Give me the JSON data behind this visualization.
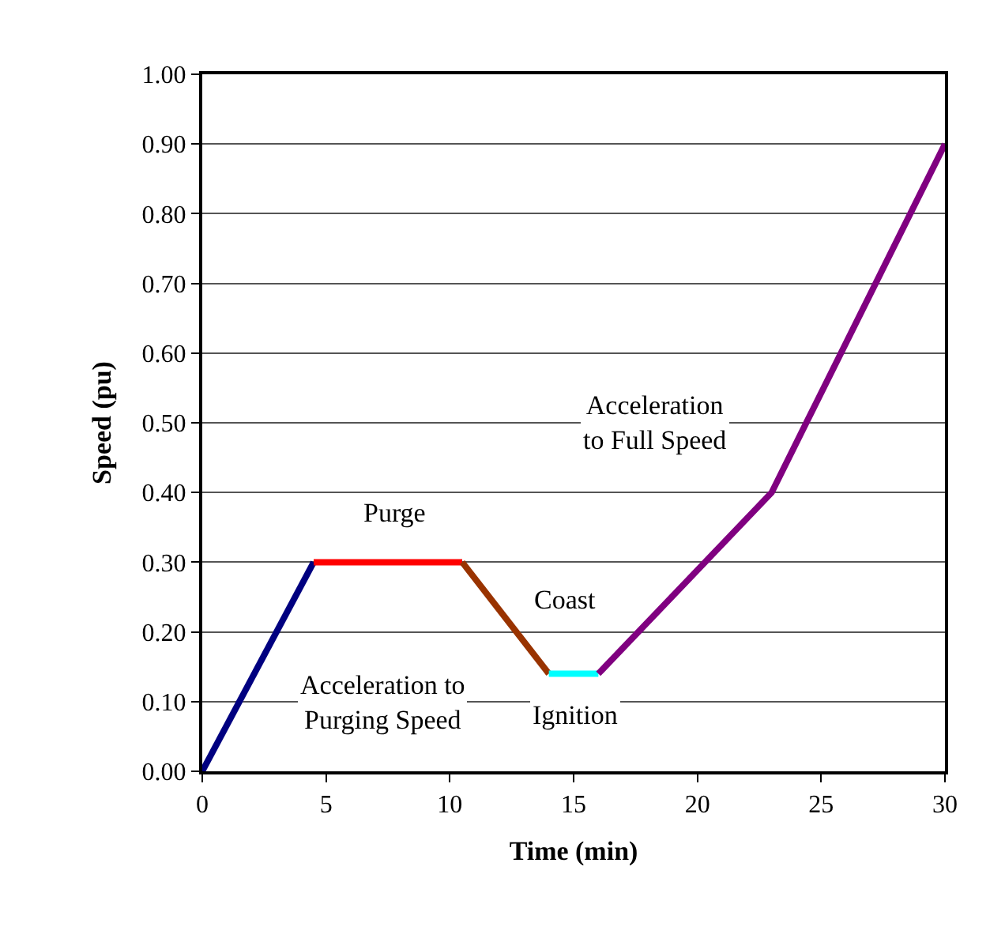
{
  "chart_data": {
    "type": "line",
    "xlabel": "Time (min)",
    "ylabel": "Speed (pu)",
    "xlim": [
      0,
      30
    ],
    "xticks": [
      0,
      5,
      10,
      15,
      20,
      25,
      30
    ],
    "ylim": [
      0,
      1
    ],
    "yticks": [
      {
        "value": 0,
        "label": "0.00"
      },
      {
        "value": 0.1,
        "label": "0.10"
      },
      {
        "value": 0.2,
        "label": "0.20"
      },
      {
        "value": 0.3,
        "label": "0.30"
      },
      {
        "value": 0.4,
        "label": "0.40"
      },
      {
        "value": 0.5,
        "label": "0.50"
      },
      {
        "value": 0.6,
        "label": "0.60"
      },
      {
        "value": 0.7,
        "label": "0.70"
      },
      {
        "value": 0.8,
        "label": "0.80"
      },
      {
        "value": 0.9,
        "label": "0.90"
      },
      {
        "value": 1,
        "label": "1.00"
      }
    ],
    "grid": "y",
    "marker": "none",
    "line_style": "solid",
    "series": [
      {
        "color": "#000080",
        "x": [
          0,
          4.5
        ],
        "values": [
          0,
          0.3
        ]
      },
      {
        "color": "#ff0000",
        "x": [
          4.5,
          10.5
        ],
        "values": [
          0.3,
          0.3
        ]
      },
      {
        "color": "#993300",
        "x": [
          10.5,
          14
        ],
        "values": [
          0.3,
          0.14
        ]
      },
      {
        "color": "#00ffff",
        "x": [
          14,
          16
        ],
        "values": [
          0.14,
          0.14
        ]
      },
      {
        "color": "#800080",
        "x": [
          16,
          23,
          30
        ],
        "values": [
          0.14,
          0.4,
          0.9
        ]
      }
    ],
    "annotations": [
      "Purge",
      "Coast",
      "Ignition",
      "Acceleration to\nPurging Speed",
      "Acceleration\nto Full Speed"
    ]
  }
}
